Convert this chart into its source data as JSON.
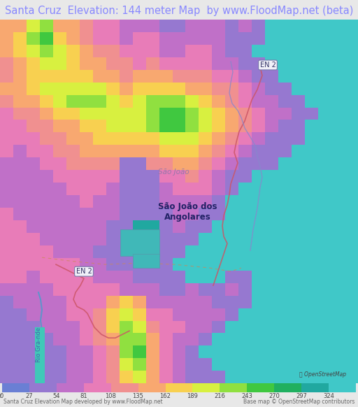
{
  "title": "Santa Cruz  Elevation: 144 meter Map  by www.FloodMap.net (beta)",
  "title_color": "#8888ff",
  "title_fontsize": 10.5,
  "bg_color": "#e8e8e8",
  "ocean_color": "#40c8c8",
  "footer_left": "Santa Cruz Elevation Map developed by www.FloodMap.net",
  "footer_right": "Base map © OpenStreetMap contributors",
  "colorbar_ticks": [
    0,
    27,
    54,
    81,
    108,
    135,
    162,
    189,
    216,
    243,
    270,
    297,
    324
  ],
  "colorbar_colors": [
    "#6a7fd4",
    "#9678d0",
    "#c070c8",
    "#e87cb8",
    "#f09090",
    "#f8a870",
    "#f8d050",
    "#d8f040",
    "#90e040",
    "#40c840",
    "#20b060",
    "#20a8a0",
    "#40c8c8"
  ],
  "label_saojoao": "São João",
  "label_saojoadosangolares": "São João dos\nAngolares",
  "label_en2_top": "EN 2",
  "label_en2_bottom": "EN 2",
  "label_riogrande": "Rio Gra­nde",
  "road_color": "#cc6677",
  "river_color": "#5588cc"
}
